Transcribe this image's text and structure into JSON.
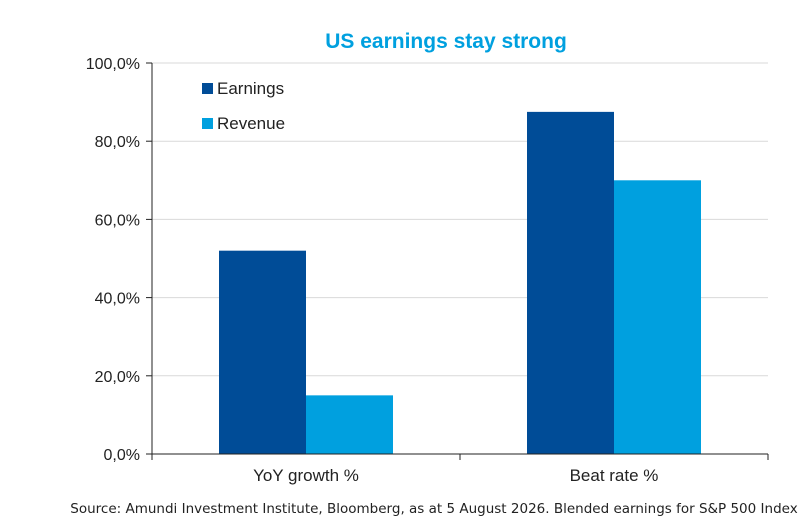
{
  "chart_data": {
    "type": "bar",
    "title": "US earnings stay strong",
    "categories": [
      "YoY growth %",
      "Beat rate %"
    ],
    "series": [
      {
        "name": "Earnings",
        "values": [
          52.0,
          87.5
        ],
        "color": "#004c97"
      },
      {
        "name": "Revenue",
        "values": [
          15.0,
          70.0
        ],
        "color": "#00a0df"
      }
    ],
    "yticks": [
      "0,0%",
      "20,0%",
      "40,0%",
      "60,0%",
      "80,0%",
      "100,0%"
    ],
    "ylim": [
      0,
      100
    ],
    "grid": true,
    "legend_position": "top-left",
    "source": "Source: Amundi Investment Institute, Bloomberg, as at 5 August 2026. Blended earnings for S&P 500 Index"
  },
  "colors": {
    "title": "#00a0df",
    "grid": "#d9d9d9",
    "axis": "#222222"
  }
}
